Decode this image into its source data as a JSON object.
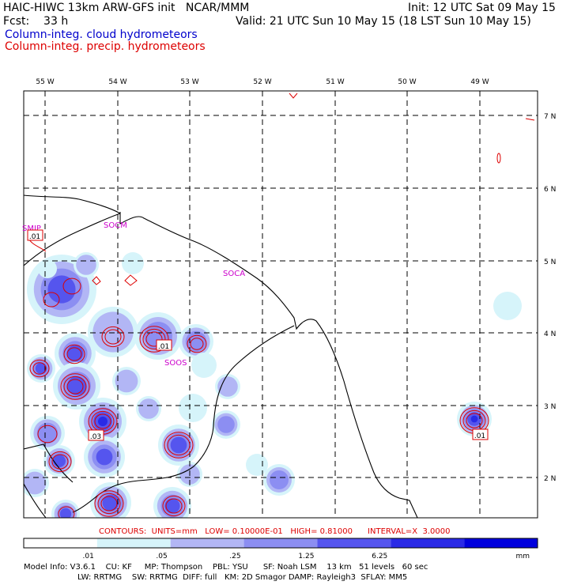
{
  "header": {
    "model_title": "HAIC-HIWC 13km ARW-GFS init   NCAR/MMM",
    "init": "Init: 12 UTC Sat 09 May 15",
    "fcst": "Fcst:    33 h",
    "valid": "Valid: 21 UTC Sun 10 May 15 (18 LST Sun 10 May 15)",
    "field_cloud": "Column-integ. cloud hydrometeors",
    "field_precip": "Column-integ. precip. hydrometeors"
  },
  "map": {
    "lon_labels": [
      "55 W",
      "54 W",
      "53 W",
      "52 W",
      "51 W",
      "50 W",
      "49 W"
    ],
    "lat_labels": [
      "7 N",
      "6 N",
      "5 N",
      "4 N",
      "3 N",
      "2 N"
    ],
    "stations": [
      "SMJP",
      "SOCM",
      "SOCA",
      "SOOS"
    ],
    "contour_labels": [
      ".01",
      ".01",
      ".03",
      ".01"
    ]
  },
  "contour_info": "CONTOURS:  UNITS=mm   LOW= 0.10000E-01   HIGH= 0.81000      INTERVAL=X  3.0000",
  "colorbar": {
    "ticks": [
      ".01",
      ".05",
      ".25",
      "1.25",
      "6.25"
    ],
    "unit": "mm",
    "colors": [
      "#ffffff",
      "#d6f4fa",
      "#b2b6f5",
      "#8c8ef2",
      "#5555ee",
      "#2a2ae6",
      "#0000dd"
    ]
  },
  "model_info": {
    "line1": "Model Info: V3.6.1    CU: KF     MP: Thompson    PBL: YSU      SF: Noah LSM    13 km   51 levels   60 sec",
    "line2": "LW: RRTMG    SW: RRTMG  DIFF: full   KM: 2D Smagor DAMP: Rayleigh3  SFLAY: MM5"
  },
  "colors": {
    "cloud_title": "#0000cc",
    "precip_title": "#dd0000",
    "contour": "#dd0000",
    "station": "#cc00cc"
  }
}
